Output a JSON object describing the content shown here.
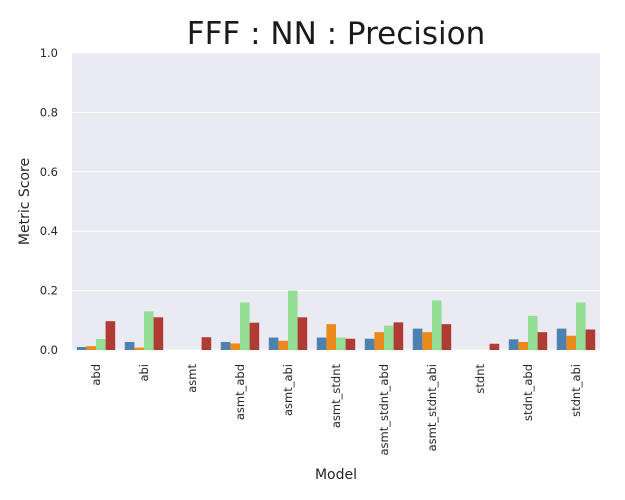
{
  "chart_data": {
    "type": "bar",
    "title": "FFF : NN : Precision",
    "xlabel": "Model",
    "ylabel": "Metric Score",
    "ylim": [
      0,
      1.0
    ],
    "yticks": [
      "0.0",
      "0.2",
      "0.4",
      "0.6",
      "0.8",
      "1.0"
    ],
    "grid": true,
    "legend": "none",
    "categories": [
      "abd",
      "abi",
      "asmt",
      "asmt_abd",
      "asmt_abi",
      "asmt_stdnt",
      "asmt_stdnt_abd",
      "asmt_stdnt_abi",
      "stdnt",
      "stdnt_abd",
      "stdnt_abi"
    ],
    "series": [
      {
        "color": "#4c81b0",
        "values": [
          0.01,
          0.027,
          0.0,
          0.027,
          0.042,
          0.042,
          0.038,
          0.072,
          0.0,
          0.036,
          0.072
        ]
      },
      {
        "color": "#ea8a1c",
        "values": [
          0.013,
          0.008,
          0.0,
          0.022,
          0.031,
          0.087,
          0.06,
          0.06,
          0.0,
          0.027,
          0.048
        ]
      },
      {
        "color": "#93e095",
        "values": [
          0.037,
          0.13,
          0.0,
          0.16,
          0.2,
          0.042,
          0.082,
          0.167,
          0.0,
          0.115,
          0.16
        ]
      },
      {
        "color": "#b03a34",
        "values": [
          0.097,
          0.11,
          0.043,
          0.092,
          0.11,
          0.038,
          0.093,
          0.087,
          0.021,
          0.06,
          0.069
        ]
      }
    ]
  }
}
